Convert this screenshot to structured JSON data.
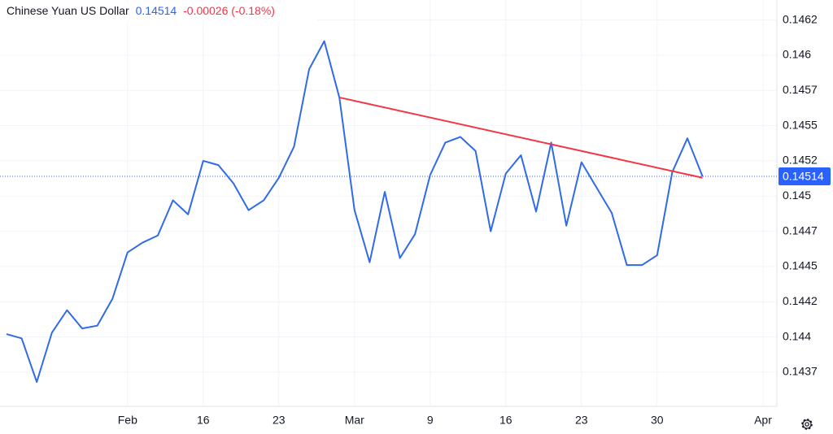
{
  "chart_data": {
    "type": "line",
    "title": "Chinese Yuan US Dollar",
    "last_price": 0.14514,
    "change": "-0.00026 (-0.18%)",
    "categories": [
      null,
      null,
      null,
      null,
      null,
      null,
      null,
      null,
      "Feb",
      null,
      null,
      null,
      null,
      "16",
      null,
      null,
      null,
      null,
      "23",
      null,
      null,
      null,
      null,
      "Mar",
      null,
      null,
      null,
      null,
      "9",
      null,
      null,
      null,
      null,
      "16",
      null,
      null,
      null,
      null,
      "23",
      null,
      null,
      null,
      null,
      "30",
      null,
      null,
      null,
      null,
      null,
      null,
      "Apr"
    ],
    "series": [
      {
        "color": "#2f6be8",
        "values": [
          0.14402,
          0.14399,
          0.14368,
          0.14403,
          0.14419,
          0.14406,
          0.14408,
          0.14427,
          0.1446,
          0.14467,
          0.14472,
          0.14497,
          0.14487,
          0.14525,
          0.14522,
          0.14509,
          0.1449,
          0.14497,
          0.14513,
          0.14535,
          0.1459,
          0.1461,
          0.1457,
          0.1449,
          0.14453,
          0.14503,
          0.14456,
          0.14473,
          0.14515,
          0.14538,
          0.14542,
          0.14532,
          0.14475,
          0.14516,
          0.14529,
          0.14489,
          0.14538,
          0.14479,
          0.14524,
          0.14506,
          0.14488,
          0.14451,
          0.14451,
          0.14458,
          0.14517,
          0.14541,
          0.14514,
          null,
          null,
          null,
          null
        ]
      }
    ],
    "trendline": {
      "color": "#f23645",
      "start": [
        22,
        0.1457
      ],
      "end": [
        46,
        0.14513
      ]
    },
    "ylim": [
      0.143507,
      0.146392
    ],
    "yticks": [
      {
        "value": 0.14625,
        "label": "0.1462"
      },
      0.146,
      {
        "value": 0.14575,
        "label": "0.1457"
      },
      0.1455,
      {
        "value": 0.14525,
        "label": "0.1452"
      },
      0.145,
      {
        "value": 0.14475,
        "label": "0.1447"
      },
      0.1445,
      {
        "value": 0.14425,
        "label": "0.1442"
      },
      0.144,
      {
        "value": 0.14375,
        "label": "0.1437"
      }
    ],
    "grid": true
  }
}
